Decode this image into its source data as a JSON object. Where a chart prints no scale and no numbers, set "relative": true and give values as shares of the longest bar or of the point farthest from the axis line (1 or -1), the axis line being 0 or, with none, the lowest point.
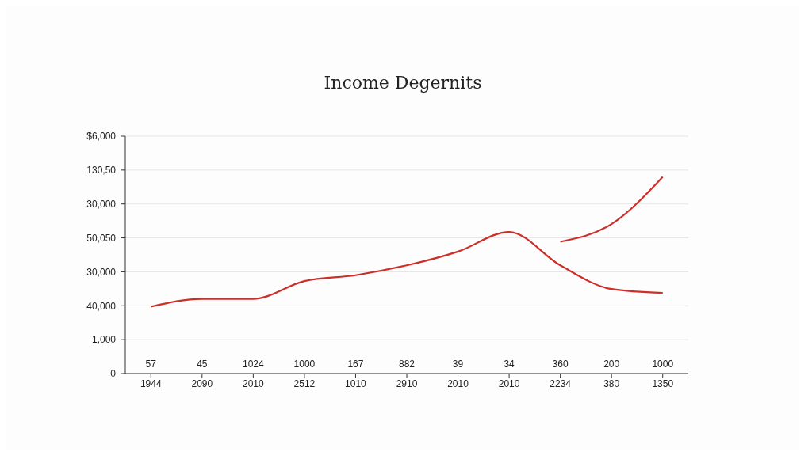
{
  "chart_data": {
    "type": "line",
    "title": "Income Degernits",
    "relative": true,
    "categories": [
      "1944",
      "2090",
      "2010",
      "2512",
      "1010",
      "2910",
      "2010",
      "2010",
      "2234",
      "380",
      "1350"
    ],
    "series": [
      {
        "color": "#cc2f2a",
        "values": [
          0.34,
          0.38,
          0.38,
          0.47,
          0.5,
          0.55,
          0.62,
          0.72,
          0.55,
          0.43,
          0.41
        ]
      },
      {
        "color": "#cc2f2a",
        "values": [
          null,
          null,
          null,
          null,
          null,
          null,
          null,
          null,
          0.67,
          0.76,
          1
        ]
      }
    ],
    "annotations": [
      "0",
      "1,000",
      "40,000",
      "30,000",
      "50,050",
      "30,000",
      "130,50",
      "$6,000",
      "57",
      "45",
      "1024",
      "1000",
      "167",
      "882",
      "39",
      "34",
      "360",
      "200",
      "1000"
    ],
    "grid": "y",
    "marker": "none",
    "line_style": "solid",
    "legend": false
  }
}
